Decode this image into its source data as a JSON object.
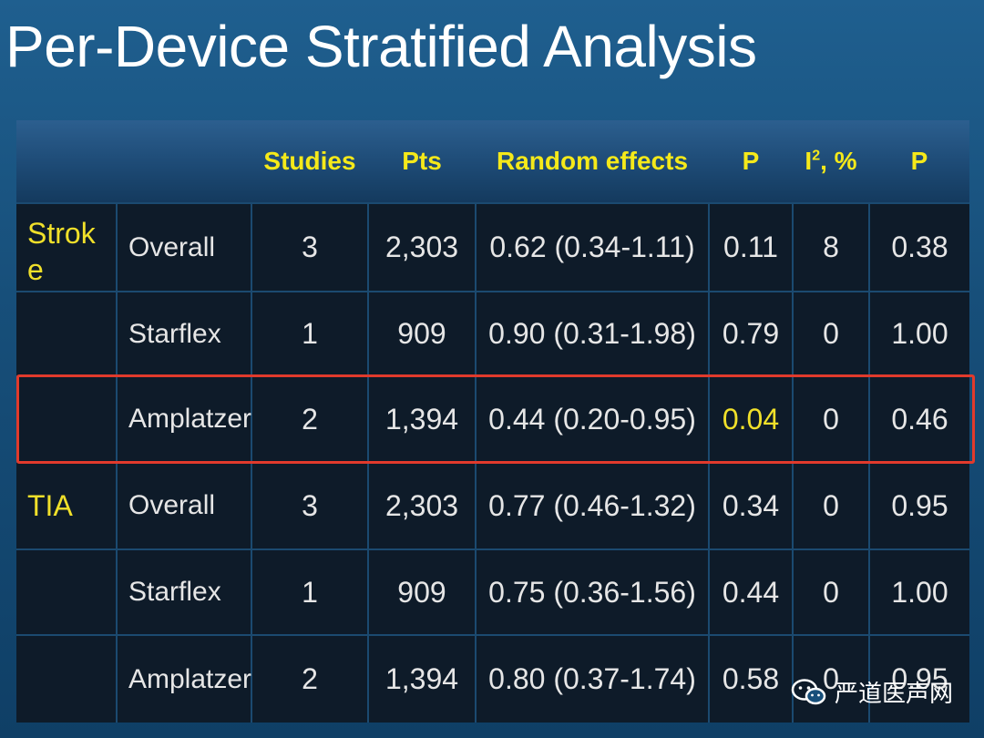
{
  "title": "Per-Device Stratified Analysis",
  "table": {
    "headers": [
      "",
      "",
      "Studies",
      "Pts",
      "Random effects",
      "P",
      "I2, %",
      "P"
    ],
    "header_i2_base": "I",
    "header_i2_sup": "2",
    "header_i2_rest": ", %",
    "groups": [
      {
        "label": "Strok e",
        "rows": [
          {
            "device": "Overall",
            "studies": "3",
            "pts": "2,303",
            "random_effects": "0.62 (0.34-1.11)",
            "p": "0.11",
            "i2": "8",
            "p2": "0.38"
          },
          {
            "device": "Starflex",
            "studies": "1",
            "pts": "909",
            "random_effects": "0.90 (0.31-1.98)",
            "p": "0.79",
            "i2": "0",
            "p2": "1.00"
          },
          {
            "device": "Amplatzer",
            "studies": "2",
            "pts": "1,394",
            "random_effects": "0.44 (0.20-0.95)",
            "p": "0.04",
            "i2": "0",
            "p2": "0.46"
          }
        ]
      },
      {
        "label": "TIA",
        "rows": [
          {
            "device": "Overall",
            "studies": "3",
            "pts": "2,303",
            "random_effects": "0.77 (0.46-1.32)",
            "p": "0.34",
            "i2": "0",
            "p2": "0.95"
          },
          {
            "device": "Starflex",
            "studies": "1",
            "pts": "909",
            "random_effects": "0.75 (0.36-1.56)",
            "p": "0.44",
            "i2": "0",
            "p2": "1.00"
          },
          {
            "device": "Amplatzer",
            "studies": "2",
            "pts": "1,394",
            "random_effects": "0.80 (0.37-1.74)",
            "p": "0.58",
            "i2": "0",
            "p2": "0.95"
          }
        ]
      }
    ]
  },
  "highlight": {
    "row": "Stroke / Amplatzer",
    "color": "#e13a2c"
  },
  "colors": {
    "accent_yellow": "#f0e02a",
    "text": "#e6e6e6",
    "background": "#174f7a"
  },
  "watermark": {
    "text": "严道医声网",
    "icon": "wechat-icon"
  }
}
